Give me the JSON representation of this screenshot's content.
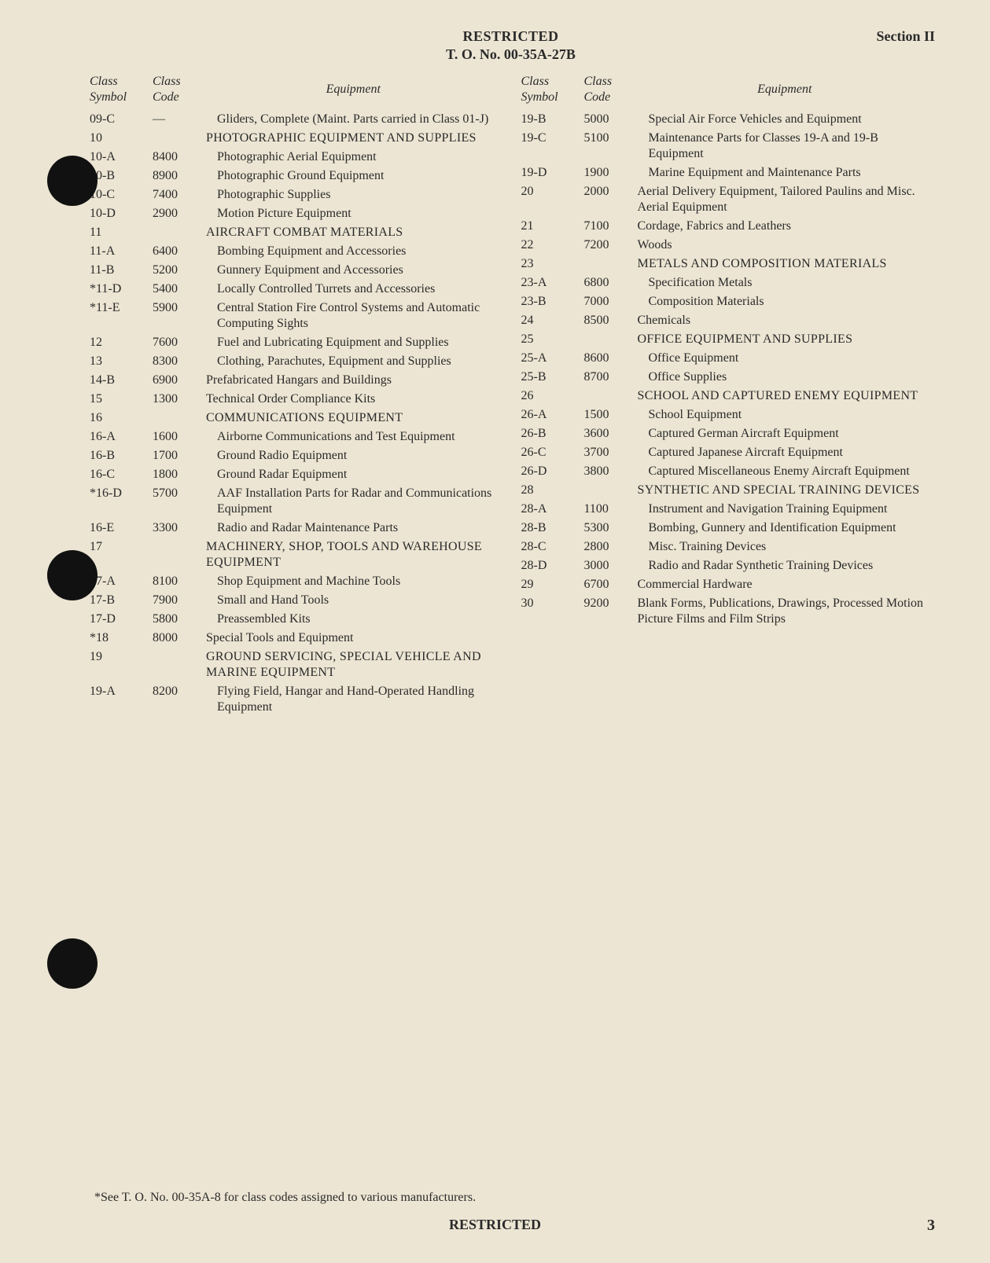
{
  "header": {
    "restricted": "RESTRICTED",
    "to_no": "T. O. No. 00-35A-27B",
    "section": "Section II"
  },
  "table_headers": {
    "class_symbol_1": "Class",
    "class_symbol_2": "Symbol",
    "class_code_1": "Class",
    "class_code_2": "Code",
    "equipment": "Equipment"
  },
  "left": [
    {
      "symbol": "09-C",
      "code": "—",
      "equipment": "Gliders, Complete (Maint. Parts carried in Class 01-J)",
      "indent": 1,
      "gap": false
    },
    {
      "symbol": "10",
      "code": "",
      "equipment": "PHOTOGRAPHIC EQUIPMENT AND SUPPLIES",
      "heading": true,
      "gap": true
    },
    {
      "symbol": "10-A",
      "code": "8400",
      "equipment": "Photographic Aerial Equipment",
      "indent": 1
    },
    {
      "symbol": "10-B",
      "code": "8900",
      "equipment": "Photographic Ground Equipment",
      "indent": 1
    },
    {
      "symbol": "10-C",
      "code": "7400",
      "equipment": "Photographic Supplies",
      "indent": 1
    },
    {
      "symbol": "10-D",
      "code": "2900",
      "equipment": "Motion Picture Equipment",
      "indent": 1
    },
    {
      "symbol": "11",
      "code": "",
      "equipment": "AIRCRAFT COMBAT MATERIALS",
      "heading": true,
      "gap": true
    },
    {
      "symbol": "11-A",
      "code": "6400",
      "equipment": "Bombing Equipment and Accessories",
      "indent": 1
    },
    {
      "symbol": "11-B",
      "code": "5200",
      "equipment": "Gunnery Equipment and Accessories",
      "indent": 1
    },
    {
      "symbol": "*11-D",
      "code": "5400",
      "equipment": "Locally Controlled Turrets and Accessories",
      "indent": 1
    },
    {
      "symbol": "*11-E",
      "code": "5900",
      "equipment": "Central Station Fire Control Systems and Automatic Computing Sights",
      "indent": 1
    },
    {
      "symbol": "12",
      "code": "7600",
      "equipment": "Fuel and Lubricating Equipment and Supplies",
      "indent": 1,
      "gap": true
    },
    {
      "symbol": "13",
      "code": "8300",
      "equipment": "Clothing, Parachutes, Equipment and Supplies",
      "indent": 1,
      "gap": true
    },
    {
      "symbol": "14-B",
      "code": "6900",
      "equipment": "Prefabricated Hangars and Buildings",
      "gap": true
    },
    {
      "symbol": "15",
      "code": "1300",
      "equipment": "Technical Order Compliance Kits",
      "gap": true
    },
    {
      "symbol": "16",
      "code": "",
      "equipment": "COMMUNICATIONS EQUIPMENT",
      "heading": true,
      "gap": true
    },
    {
      "symbol": "16-A",
      "code": "1600",
      "equipment": "Airborne Communications and Test Equipment",
      "indent": 1
    },
    {
      "symbol": "16-B",
      "code": "1700",
      "equipment": "Ground Radio Equipment",
      "indent": 1
    },
    {
      "symbol": "16-C",
      "code": "1800",
      "equipment": "Ground Radar Equipment",
      "indent": 1
    },
    {
      "symbol": "*16-D",
      "code": "5700",
      "equipment": "AAF Installation Parts for Radar and Communications Equipment",
      "indent": 1
    },
    {
      "symbol": "16-E",
      "code": "3300",
      "equipment": "Radio and Radar Maintenance Parts",
      "indent": 1
    },
    {
      "symbol": "17",
      "code": "",
      "equipment": "MACHINERY, SHOP, TOOLS AND WAREHOUSE EQUIPMENT",
      "heading": true,
      "gap": true
    },
    {
      "symbol": "17-A",
      "code": "8100",
      "equipment": "Shop Equipment and Machine Tools",
      "indent": 1
    },
    {
      "symbol": "17-B",
      "code": "7900",
      "equipment": "Small and Hand Tools",
      "indent": 1
    },
    {
      "symbol": "17-D",
      "code": "5800",
      "equipment": "Preassembled Kits",
      "indent": 1
    },
    {
      "symbol": "*18",
      "code": "8000",
      "equipment": "Special Tools and Equipment",
      "gap": true
    },
    {
      "symbol": "19",
      "code": "",
      "equipment": "GROUND SERVICING, SPECIAL VEHICLE AND MARINE EQUIPMENT",
      "heading": true,
      "gap": true
    },
    {
      "symbol": "19-A",
      "code": "8200",
      "equipment": "Flying Field, Hangar and Hand-Operated Handling Equipment",
      "indent": 1
    }
  ],
  "right": [
    {
      "symbol": "19-B",
      "code": "5000",
      "equipment": "Special Air Force Vehicles and Equipment",
      "indent": 1
    },
    {
      "symbol": "19-C",
      "code": "5100",
      "equipment": "Maintenance Parts for Classes 19-A and 19-B Equipment",
      "indent": 1
    },
    {
      "symbol": "19-D",
      "code": "1900",
      "equipment": "Marine Equipment and Maintenance Parts",
      "indent": 1
    },
    {
      "symbol": "20",
      "code": "2000",
      "equipment": "Aerial Delivery Equipment, Tailored Paulins and Misc. Aerial Equipment",
      "gap": true
    },
    {
      "symbol": "21",
      "code": "7100",
      "equipment": "Cordage, Fabrics and Leathers",
      "gap": true
    },
    {
      "symbol": "22",
      "code": "7200",
      "equipment": "Woods",
      "gap": true
    },
    {
      "symbol": "23",
      "code": "",
      "equipment": "METALS AND COMPOSITION MATERIALS",
      "heading": true,
      "gap": true
    },
    {
      "symbol": "23-A",
      "code": "6800",
      "equipment": "Specification Metals",
      "indent": 1
    },
    {
      "symbol": "23-B",
      "code": "7000",
      "equipment": "Composition Materials",
      "indent": 1
    },
    {
      "symbol": "24",
      "code": "8500",
      "equipment": "Chemicals",
      "gap": true
    },
    {
      "symbol": "25",
      "code": "",
      "equipment": "OFFICE EQUIPMENT AND SUPPLIES",
      "heading": true,
      "gap": true
    },
    {
      "symbol": "25-A",
      "code": "8600",
      "equipment": "Office Equipment",
      "indent": 1
    },
    {
      "symbol": "25-B",
      "code": "8700",
      "equipment": "Office Supplies",
      "indent": 1
    },
    {
      "symbol": "26",
      "code": "",
      "equipment": "SCHOOL AND CAPTURED ENEMY EQUIPMENT",
      "heading": true,
      "gap": true
    },
    {
      "symbol": "26-A",
      "code": "1500",
      "equipment": "School Equipment",
      "indent": 1
    },
    {
      "symbol": "26-B",
      "code": "3600",
      "equipment": "Captured German Aircraft Equipment",
      "indent": 1
    },
    {
      "symbol": "26-C",
      "code": "3700",
      "equipment": "Captured Japanese Aircraft Equipment",
      "indent": 1
    },
    {
      "symbol": "26-D",
      "code": "3800",
      "equipment": "Captured Miscellaneous Enemy Aircraft Equipment",
      "indent": 1
    },
    {
      "symbol": "28",
      "code": "",
      "equipment": "SYNTHETIC AND SPECIAL TRAINING DEVICES",
      "heading": true,
      "gap": true
    },
    {
      "symbol": "28-A",
      "code": "1100",
      "equipment": "Instrument and Navigation Training Equipment",
      "indent": 1
    },
    {
      "symbol": "28-B",
      "code": "5300",
      "equipment": "Bombing, Gunnery and Identification Equipment",
      "indent": 1
    },
    {
      "symbol": "28-C",
      "code": "2800",
      "equipment": "Misc. Training Devices",
      "indent": 1
    },
    {
      "symbol": "28-D",
      "code": "3000",
      "equipment": "Radio and Radar Synthetic Training Devices",
      "indent": 1
    },
    {
      "symbol": "29",
      "code": "6700",
      "equipment": "Commercial Hardware",
      "gap": true
    },
    {
      "symbol": "30",
      "code": "9200",
      "equipment": "Blank Forms, Publications, Drawings, Processed Motion Picture Films and Film Strips",
      "gap": true
    }
  ],
  "footnote": "*See T. O. No. 00-35A-8 for class codes assigned to various manufacturers.",
  "footer_restricted": "RESTRICTED",
  "page_number": "3"
}
